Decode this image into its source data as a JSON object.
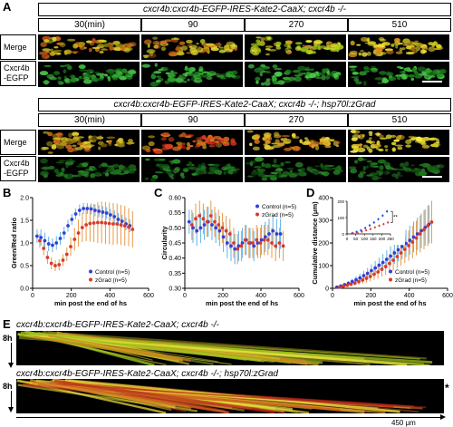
{
  "panels": {
    "A": {
      "letter": "A",
      "group1_title": "cxcr4b:cxcr4b-EGFP-IRES-Kate2-CaaX; cxcr4b -/-",
      "group2_title": "cxcr4b:cxcr4b-EGFP-IRES-Kate2-CaaX; cxcr4b -/-; hsp70l:zGrad",
      "timepoints": [
        "30(min)",
        "90",
        "270",
        "510"
      ],
      "row_merge": "Merge",
      "row_gfp_line1": "Cxcr4b",
      "row_gfp_line2": "-EGFP"
    },
    "B": {
      "letter": "B"
    },
    "C": {
      "letter": "C"
    },
    "D": {
      "letter": "D"
    },
    "E": {
      "letter": "E",
      "title1": "cxcr4b:cxcr4b-EGFP-IRES-Kate2-CaaX; cxcr4b -/-",
      "title2": "cxcr4b:cxcr4b-EGFP-IRES-Kate2-CaaX; cxcr4b -/-; hsp70l:zGrad",
      "time_label": "8h",
      "scale_label": "450 μm",
      "asterisk": "*"
    }
  },
  "chart_data": [
    {
      "type": "scatter",
      "ylabel": "Green/Red ratio",
      "xlabel": "min post the end of hs",
      "xlim": [
        0,
        600
      ],
      "ylim": [
        0.0,
        2.0
      ],
      "xticks": [
        "0",
        "200",
        "400",
        "600"
      ],
      "yticks": [
        "0.0",
        "0.5",
        "1.0",
        "1.5",
        "2.0"
      ],
      "legend_position": "bottom-right",
      "series": [
        {
          "name": "Control (n=5)",
          "color": "#3340d6",
          "x": [
            30,
            50,
            70,
            90,
            110,
            130,
            150,
            170,
            190,
            210,
            230,
            250,
            270,
            290,
            310,
            330,
            350,
            370,
            390,
            410,
            430,
            450,
            470,
            490,
            510
          ],
          "y": [
            1.15,
            1.12,
            1.05,
            0.98,
            0.95,
            1.0,
            1.1,
            1.22,
            1.38,
            1.52,
            1.64,
            1.72,
            1.76,
            1.76,
            1.75,
            1.72,
            1.7,
            1.68,
            1.66,
            1.62,
            1.58,
            1.52,
            1.48,
            1.42,
            1.38
          ],
          "err": [
            0.15,
            0.18,
            0.18,
            0.16,
            0.15,
            0.15,
            0.14,
            0.14,
            0.13,
            0.12,
            0.12,
            0.13,
            0.12,
            0.12,
            0.12,
            0.13,
            0.13,
            0.13,
            0.13,
            0.13,
            0.14,
            0.14,
            0.14,
            0.14,
            0.14
          ]
        },
        {
          "name": "zGrad (n=5)",
          "color": "#d93a2b",
          "x": [
            30,
            50,
            70,
            90,
            110,
            130,
            150,
            170,
            190,
            210,
            230,
            250,
            270,
            290,
            310,
            330,
            350,
            370,
            390,
            410,
            430,
            450,
            470,
            490,
            510
          ],
          "y": [
            1.05,
            0.88,
            0.68,
            0.55,
            0.5,
            0.52,
            0.62,
            0.75,
            0.92,
            1.08,
            1.22,
            1.34,
            1.4,
            1.43,
            1.44,
            1.45,
            1.45,
            1.44,
            1.43,
            1.42,
            1.42,
            1.4,
            1.38,
            1.35,
            1.3
          ],
          "err": [
            0.15,
            0.15,
            0.14,
            0.13,
            0.12,
            0.12,
            0.13,
            0.15,
            0.2,
            0.25,
            0.3,
            0.32,
            0.36,
            0.4,
            0.42,
            0.45,
            0.46,
            0.46,
            0.46,
            0.46,
            0.45,
            0.44,
            0.44,
            0.42,
            0.4
          ]
        }
      ]
    },
    {
      "type": "scatter",
      "ylabel": "Circularity",
      "xlabel": "min post the end of hs",
      "xlim": [
        0,
        600
      ],
      "ylim": [
        0.3,
        0.6
      ],
      "xticks": [
        "0",
        "200",
        "400",
        "600"
      ],
      "yticks": [
        "0.30",
        "0.35",
        "0.40",
        "0.45",
        "0.50",
        "0.55",
        "0.60"
      ],
      "legend_position": "top-right",
      "series": [
        {
          "name": "Control (n=5)",
          "color": "#3340d6",
          "x": [
            30,
            50,
            70,
            90,
            110,
            130,
            150,
            170,
            190,
            210,
            230,
            250,
            270,
            290,
            310,
            330,
            350,
            370,
            390,
            410,
            430,
            450,
            470,
            490,
            510
          ],
          "y": [
            0.52,
            0.5,
            0.49,
            0.5,
            0.51,
            0.52,
            0.51,
            0.5,
            0.49,
            0.47,
            0.45,
            0.44,
            0.43,
            0.44,
            0.45,
            0.46,
            0.45,
            0.44,
            0.45,
            0.46,
            0.47,
            0.48,
            0.49,
            0.48,
            0.48
          ],
          "err": [
            0.04,
            0.05,
            0.05,
            0.05,
            0.05,
            0.05,
            0.05,
            0.05,
            0.05,
            0.05,
            0.05,
            0.05,
            0.05,
            0.05,
            0.05,
            0.05,
            0.05,
            0.05,
            0.05,
            0.05,
            0.05,
            0.05,
            0.05,
            0.05,
            0.05
          ]
        },
        {
          "name": "zGrad (n=5)",
          "color": "#d93a2b",
          "x": [
            30,
            50,
            70,
            90,
            110,
            130,
            150,
            170,
            190,
            210,
            230,
            250,
            270,
            290,
            310,
            330,
            350,
            370,
            390,
            410,
            430,
            450,
            470,
            490,
            510
          ],
          "y": [
            0.51,
            0.53,
            0.54,
            0.53,
            0.52,
            0.54,
            0.52,
            0.51,
            0.5,
            0.49,
            0.48,
            0.45,
            0.43,
            0.44,
            0.46,
            0.45,
            0.45,
            0.46,
            0.45,
            0.46,
            0.46,
            0.45,
            0.44,
            0.45,
            0.44
          ],
          "err": [
            0.05,
            0.05,
            0.05,
            0.05,
            0.05,
            0.05,
            0.05,
            0.05,
            0.05,
            0.05,
            0.05,
            0.05,
            0.05,
            0.05,
            0.05,
            0.05,
            0.05,
            0.05,
            0.05,
            0.05,
            0.05,
            0.05,
            0.05,
            0.05,
            0.05
          ]
        }
      ]
    },
    {
      "type": "scatter",
      "ylabel": "Cumulative distance (μm)",
      "xlabel": "min post the end of hs",
      "xlim": [
        0,
        600
      ],
      "ylim": [
        0,
        400
      ],
      "xticks": [
        "0",
        "200",
        "400",
        "600"
      ],
      "yticks": [
        "0",
        "100",
        "200",
        "300",
        "400"
      ],
      "legend_position": "bottom-right",
      "series": [
        {
          "name": "Control (n=5)",
          "color": "#3340d6",
          "x": [
            30,
            50,
            70,
            90,
            110,
            130,
            150,
            170,
            190,
            210,
            230,
            250,
            270,
            290,
            310,
            330,
            350,
            370,
            390,
            410,
            430,
            450,
            470,
            490,
            510
          ],
          "y": [
            5,
            10,
            16,
            22,
            30,
            38,
            46,
            56,
            66,
            78,
            90,
            102,
            114,
            128,
            142,
            156,
            170,
            184,
            198,
            212,
            226,
            240,
            254,
            268,
            282
          ],
          "err": [
            3,
            5,
            7,
            9,
            12,
            15,
            18,
            21,
            24,
            27,
            30,
            33,
            37,
            40,
            44,
            48,
            52,
            56,
            60,
            64,
            68,
            72,
            76,
            80,
            84
          ]
        },
        {
          "name": "zGrad (n=5)",
          "color": "#d93a2b",
          "x": [
            30,
            50,
            70,
            90,
            110,
            130,
            150,
            170,
            190,
            210,
            230,
            250,
            270,
            290,
            310,
            330,
            350,
            370,
            390,
            410,
            430,
            450,
            470,
            490,
            510
          ],
          "y": [
            5,
            9,
            13,
            18,
            23,
            29,
            36,
            44,
            52,
            62,
            72,
            84,
            96,
            110,
            124,
            140,
            156,
            172,
            188,
            204,
            222,
            240,
            258,
            276,
            292
          ],
          "err": [
            3,
            5,
            7,
            9,
            11,
            13,
            16,
            19,
            22,
            25,
            29,
            33,
            37,
            41,
            46,
            51,
            56,
            61,
            66,
            71,
            76,
            81,
            86,
            90,
            94
          ]
        }
      ],
      "inset": {
        "xticks": [
          "0",
          "50",
          "100",
          "150",
          "200",
          "250"
        ],
        "yticks": [
          "0",
          "100",
          "200"
        ],
        "xlim": [
          0,
          250
        ],
        "ylim": [
          0,
          200
        ],
        "significance": "**",
        "control_y": [
          4,
          12,
          22,
          36,
          52,
          70,
          90,
          112,
          138
        ],
        "zgrad_y": [
          3,
          8,
          14,
          22,
          30,
          40,
          50,
          60,
          70
        ],
        "x": [
          30,
          55,
          80,
          105,
          130,
          155,
          180,
          205,
          230
        ]
      }
    }
  ]
}
